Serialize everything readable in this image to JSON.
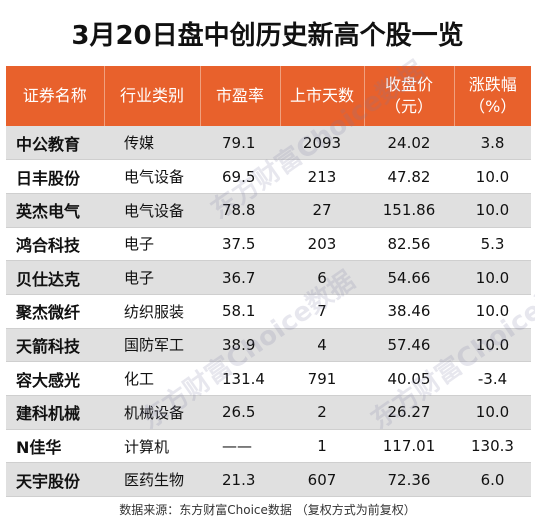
{
  "title": "3月20日盘中创历史新高个股一览",
  "headers": [
    [
      "证券名称"
    ],
    [
      "行业类别"
    ],
    [
      "市盈率"
    ],
    [
      "上市天数"
    ],
    [
      "收盘价",
      "（元）"
    ],
    [
      "涨跌幅",
      "（%）"
    ]
  ],
  "rows": [
    {
      "name": "中公教育",
      "industry": "传媒",
      "pe": "79.1",
      "days": "2093",
      "close": "24.02",
      "change": "3.8"
    },
    {
      "name": "日丰股份",
      "industry": "电气设备",
      "pe": "69.5",
      "days": "213",
      "close": "47.82",
      "change": "10.0"
    },
    {
      "name": "英杰电气",
      "industry": "电气设备",
      "pe": "78.8",
      "days": "27",
      "close": "151.86",
      "change": "10.0"
    },
    {
      "name": "鸿合科技",
      "industry": "电子",
      "pe": "37.5",
      "days": "203",
      "close": "82.56",
      "change": "5.3"
    },
    {
      "name": "贝仕达克",
      "industry": "电子",
      "pe": "36.7",
      "days": "6",
      "close": "54.66",
      "change": "10.0"
    },
    {
      "name": "聚杰微纤",
      "industry": "纺织服装",
      "pe": "58.1",
      "days": "7",
      "close": "38.46",
      "change": "10.0"
    },
    {
      "name": "天箭科技",
      "industry": "国防军工",
      "pe": "38.9",
      "days": "4",
      "close": "57.46",
      "change": "10.0"
    },
    {
      "name": "容大感光",
      "industry": "化工",
      "pe": "131.4",
      "days": "791",
      "close": "40.05",
      "change": "-3.4"
    },
    {
      "name": "建科机械",
      "industry": "机械设备",
      "pe": "26.5",
      "days": "2",
      "close": "26.27",
      "change": "10.0"
    },
    {
      "name": "N佳华",
      "industry": "计算机",
      "pe": "——",
      "days": "1",
      "close": "117.01",
      "change": "130.3"
    },
    {
      "name": "天宇股份",
      "industry": "医药生物",
      "pe": "21.3",
      "days": "607",
      "close": "72.36",
      "change": "6.0"
    }
  ],
  "footer": "数据来源：东方财富Choice数据 （复权方式为前复权）",
  "watermark": "东方财富Choice数据",
  "colors": {
    "header_bg": "#e8612c",
    "stripe": "#e0e0e0"
  }
}
